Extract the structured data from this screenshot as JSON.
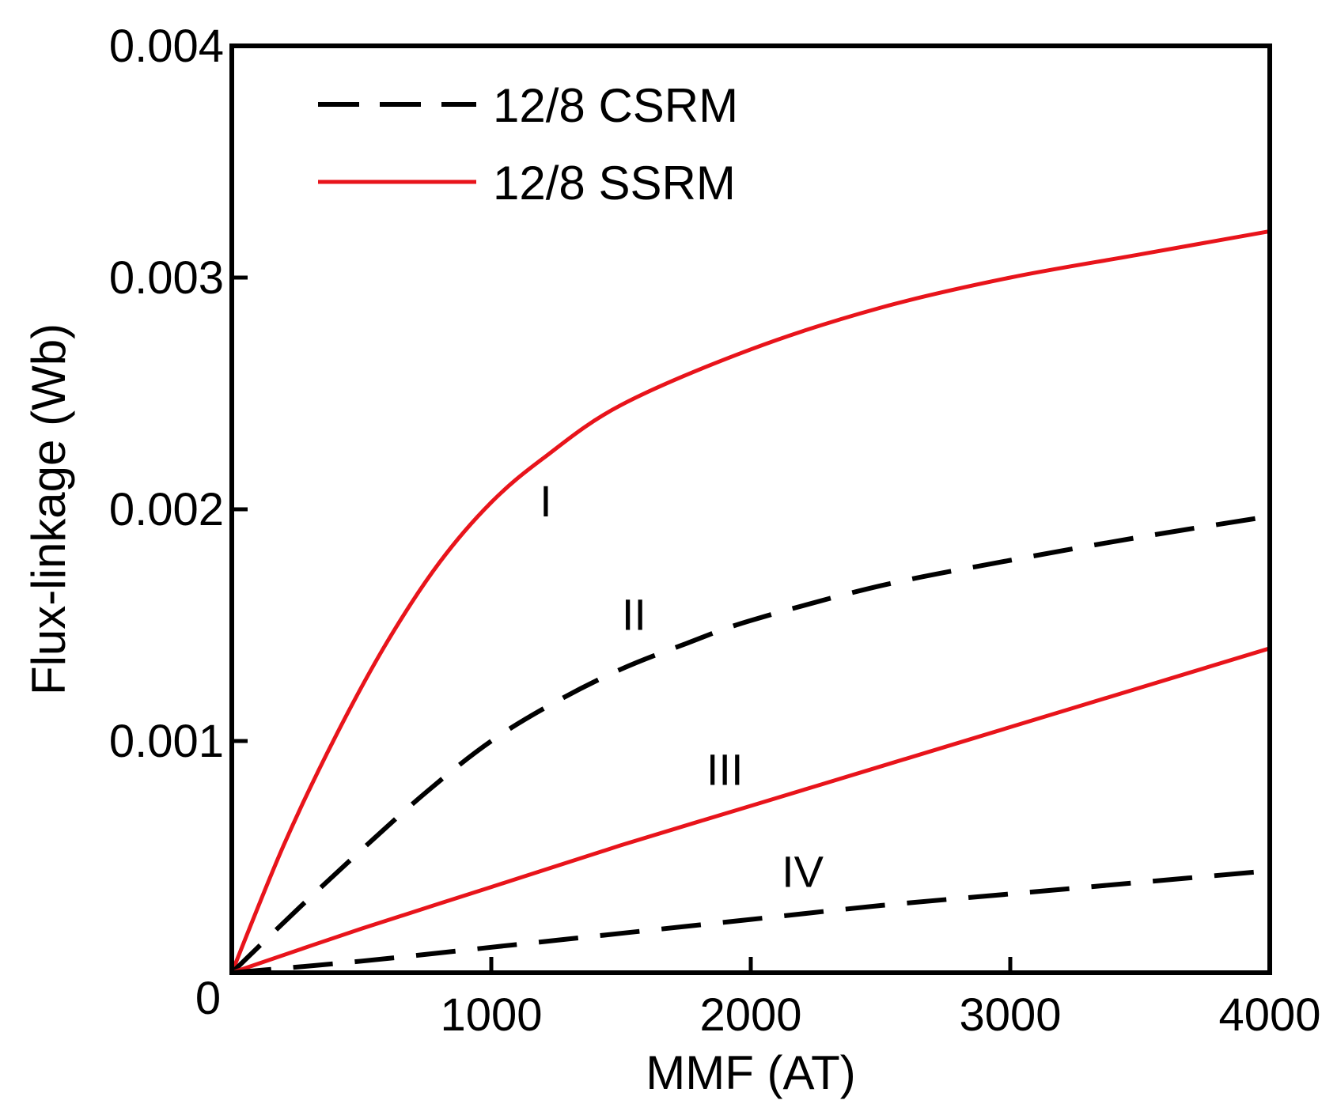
{
  "chart_data": {
    "type": "line",
    "title": "",
    "xlabel": "MMF (AT)",
    "ylabel": "Flux-linkage (Wb)",
    "xlim": [
      0,
      4000
    ],
    "ylim": [
      0,
      0.004
    ],
    "xticks": [
      0,
      1000,
      2000,
      3000,
      4000
    ],
    "xtick_labels": [
      "0",
      "1000",
      "2000",
      "3000",
      "4000"
    ],
    "yticks": [
      0.001,
      0.002,
      0.003,
      0.004
    ],
    "ytick_labels": [
      "0.001",
      "0.002",
      "0.003",
      "0.004"
    ],
    "legend_position": "top-left",
    "grid": false,
    "series": [
      {
        "name": "12/8 SSRM",
        "curve_label": "I",
        "style": "solid",
        "color": "#e8141b",
        "x": [
          0,
          200,
          400,
          600,
          800,
          1000,
          1200,
          1500,
          2000,
          2500,
          3000,
          3500,
          4000
        ],
        "y": [
          0,
          0.00055,
          0.00102,
          0.00143,
          0.00177,
          0.00203,
          0.00222,
          0.00245,
          0.00269,
          0.00287,
          0.003,
          0.0031,
          0.0032
        ],
        "label_at": [
          1210,
          0.00197
        ]
      },
      {
        "name": "12/8 CSRM",
        "curve_label": "II",
        "style": "dashed",
        "color": "#000000",
        "x": [
          0,
          250,
          500,
          750,
          1000,
          1250,
          1500,
          1750,
          2000,
          2500,
          3000,
          3500,
          4000
        ],
        "y": [
          0,
          0.00027,
          0.00053,
          0.00078,
          0.001,
          0.00117,
          0.00131,
          0.00142,
          0.00152,
          0.00167,
          0.00178,
          0.00188,
          0.00197
        ],
        "label_at": [
          1550,
          0.00148
        ]
      },
      {
        "name": "12/8 SSRM",
        "curve_label": "III",
        "style": "solid",
        "color": "#e8141b",
        "x": [
          0,
          500,
          1000,
          1500,
          2000,
          2500,
          3000,
          3500,
          4000
        ],
        "y": [
          0,
          0.00019,
          0.00037,
          0.00055,
          0.00072,
          0.00089,
          0.00106,
          0.00123,
          0.0014
        ],
        "label_at": [
          1900,
          0.00081
        ]
      },
      {
        "name": "12/8 CSRM",
        "curve_label": "IV",
        "style": "dashed",
        "color": "#000000",
        "x": [
          0,
          500,
          1000,
          1500,
          2000,
          2500,
          3000,
          3500,
          4000
        ],
        "y": [
          0,
          5e-05,
          0.00011,
          0.00017,
          0.00023,
          0.00029,
          0.00034,
          0.00039,
          0.00044
        ],
        "label_at": [
          2200,
          0.00037
        ]
      }
    ],
    "legend": [
      {
        "label": "12/8 CSRM",
        "style": "dashed",
        "color": "#000000"
      },
      {
        "label": "12/8 SSRM",
        "style": "solid",
        "color": "#e8141b"
      }
    ]
  }
}
